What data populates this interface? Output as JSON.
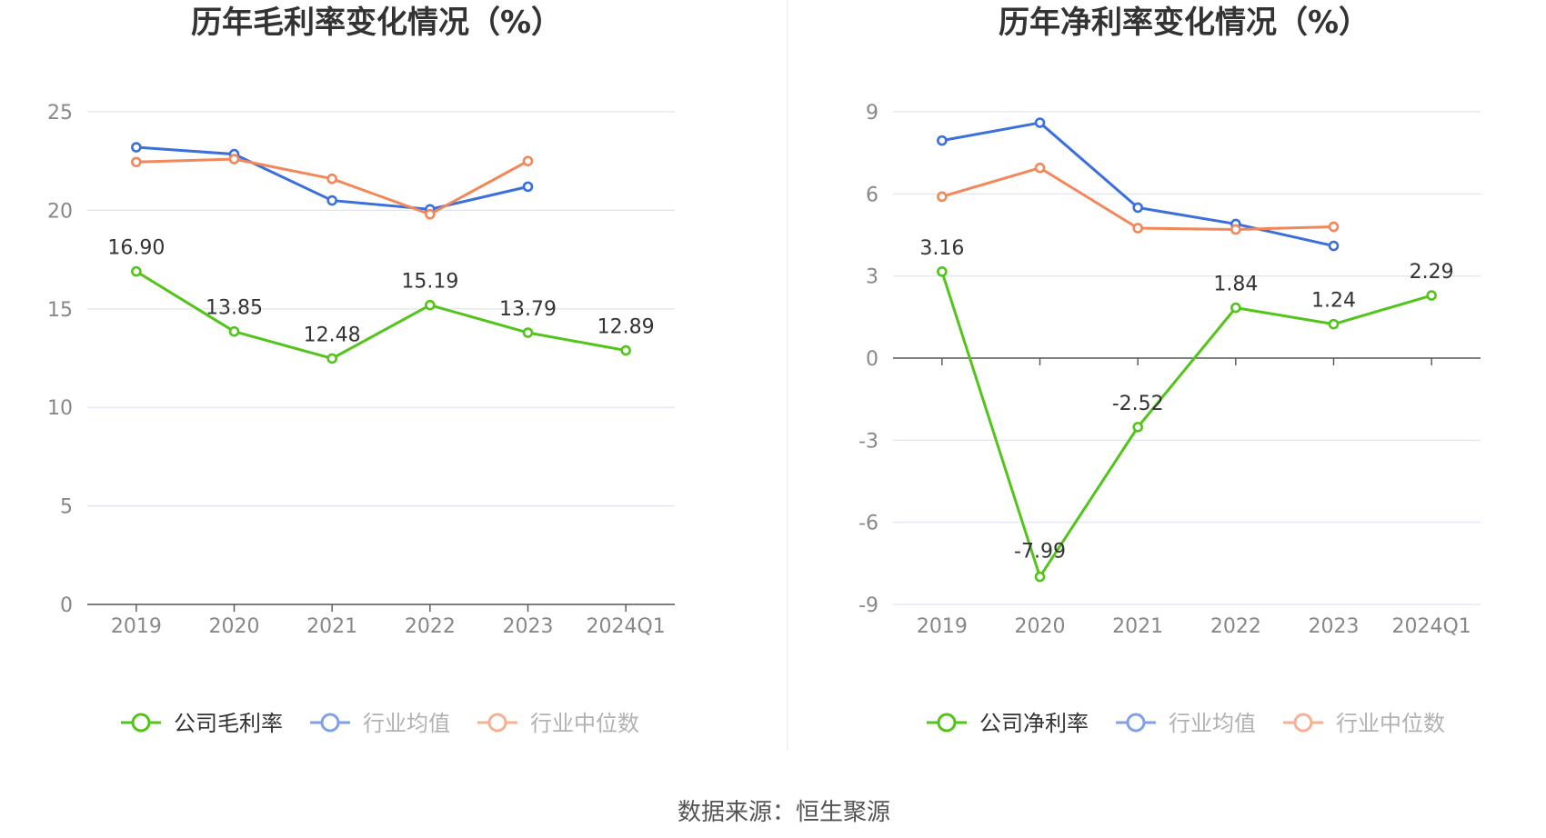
{
  "colors": {
    "company": "#52c41a",
    "industry_avg": "#3a6fdc",
    "industry_median": "#f2875a",
    "grid": "#dfe3f0",
    "axis": "#555555",
    "tick_text": "#888888",
    "label_text": "#333333",
    "legend_inactive_text": "#888888",
    "legend_active_text": "#333333"
  },
  "source": "数据来源：恒生聚源",
  "chart_data": [
    {
      "type": "line",
      "title": "历年毛利率变化情况（%）",
      "categories": [
        "2019",
        "2020",
        "2021",
        "2022",
        "2023",
        "2024Q1"
      ],
      "ylim": [
        0,
        25
      ],
      "yticks": [
        "0",
        "5",
        "10",
        "15",
        "20",
        "25"
      ],
      "ytick_values": [
        0,
        5,
        10,
        15,
        20,
        25
      ],
      "grid": true,
      "legend_position": "bottom-center",
      "series": [
        {
          "name": "公司毛利率",
          "key": "company",
          "values": [
            16.9,
            13.85,
            12.48,
            15.19,
            13.79,
            12.89
          ],
          "labels": [
            "16.90",
            "13.85",
            "12.48",
            "15.19",
            "13.79",
            "12.89"
          ]
        },
        {
          "name": "行业均值",
          "key": "industry_avg",
          "values": [
            23.2,
            22.85,
            20.5,
            20.05,
            21.2,
            null
          ]
        },
        {
          "name": "行业中位数",
          "key": "industry_median",
          "values": [
            22.45,
            22.6,
            21.6,
            19.8,
            22.5,
            null
          ]
        }
      ]
    },
    {
      "type": "line",
      "title": "历年净利率变化情况（%）",
      "categories": [
        "2019",
        "2020",
        "2021",
        "2022",
        "2023",
        "2024Q1"
      ],
      "ylim": [
        -9,
        9
      ],
      "yticks": [
        "-9",
        "-6",
        "-3",
        "0",
        "3",
        "6",
        "9"
      ],
      "ytick_values": [
        -9,
        -6,
        -3,
        0,
        3,
        6,
        9
      ],
      "grid": true,
      "legend_position": "bottom-center",
      "series": [
        {
          "name": "公司净利率",
          "key": "company",
          "values": [
            3.16,
            -7.99,
            -2.52,
            1.84,
            1.24,
            2.29
          ],
          "labels": [
            "3.16",
            "-7.99",
            "-2.52",
            "1.84",
            "1.24",
            "2.29"
          ]
        },
        {
          "name": "行业均值",
          "key": "industry_avg",
          "values": [
            7.95,
            8.6,
            5.5,
            4.9,
            4.1,
            null
          ]
        },
        {
          "name": "行业中位数",
          "key": "industry_median",
          "values": [
            5.9,
            6.95,
            4.75,
            4.7,
            4.8,
            null
          ]
        }
      ]
    }
  ]
}
